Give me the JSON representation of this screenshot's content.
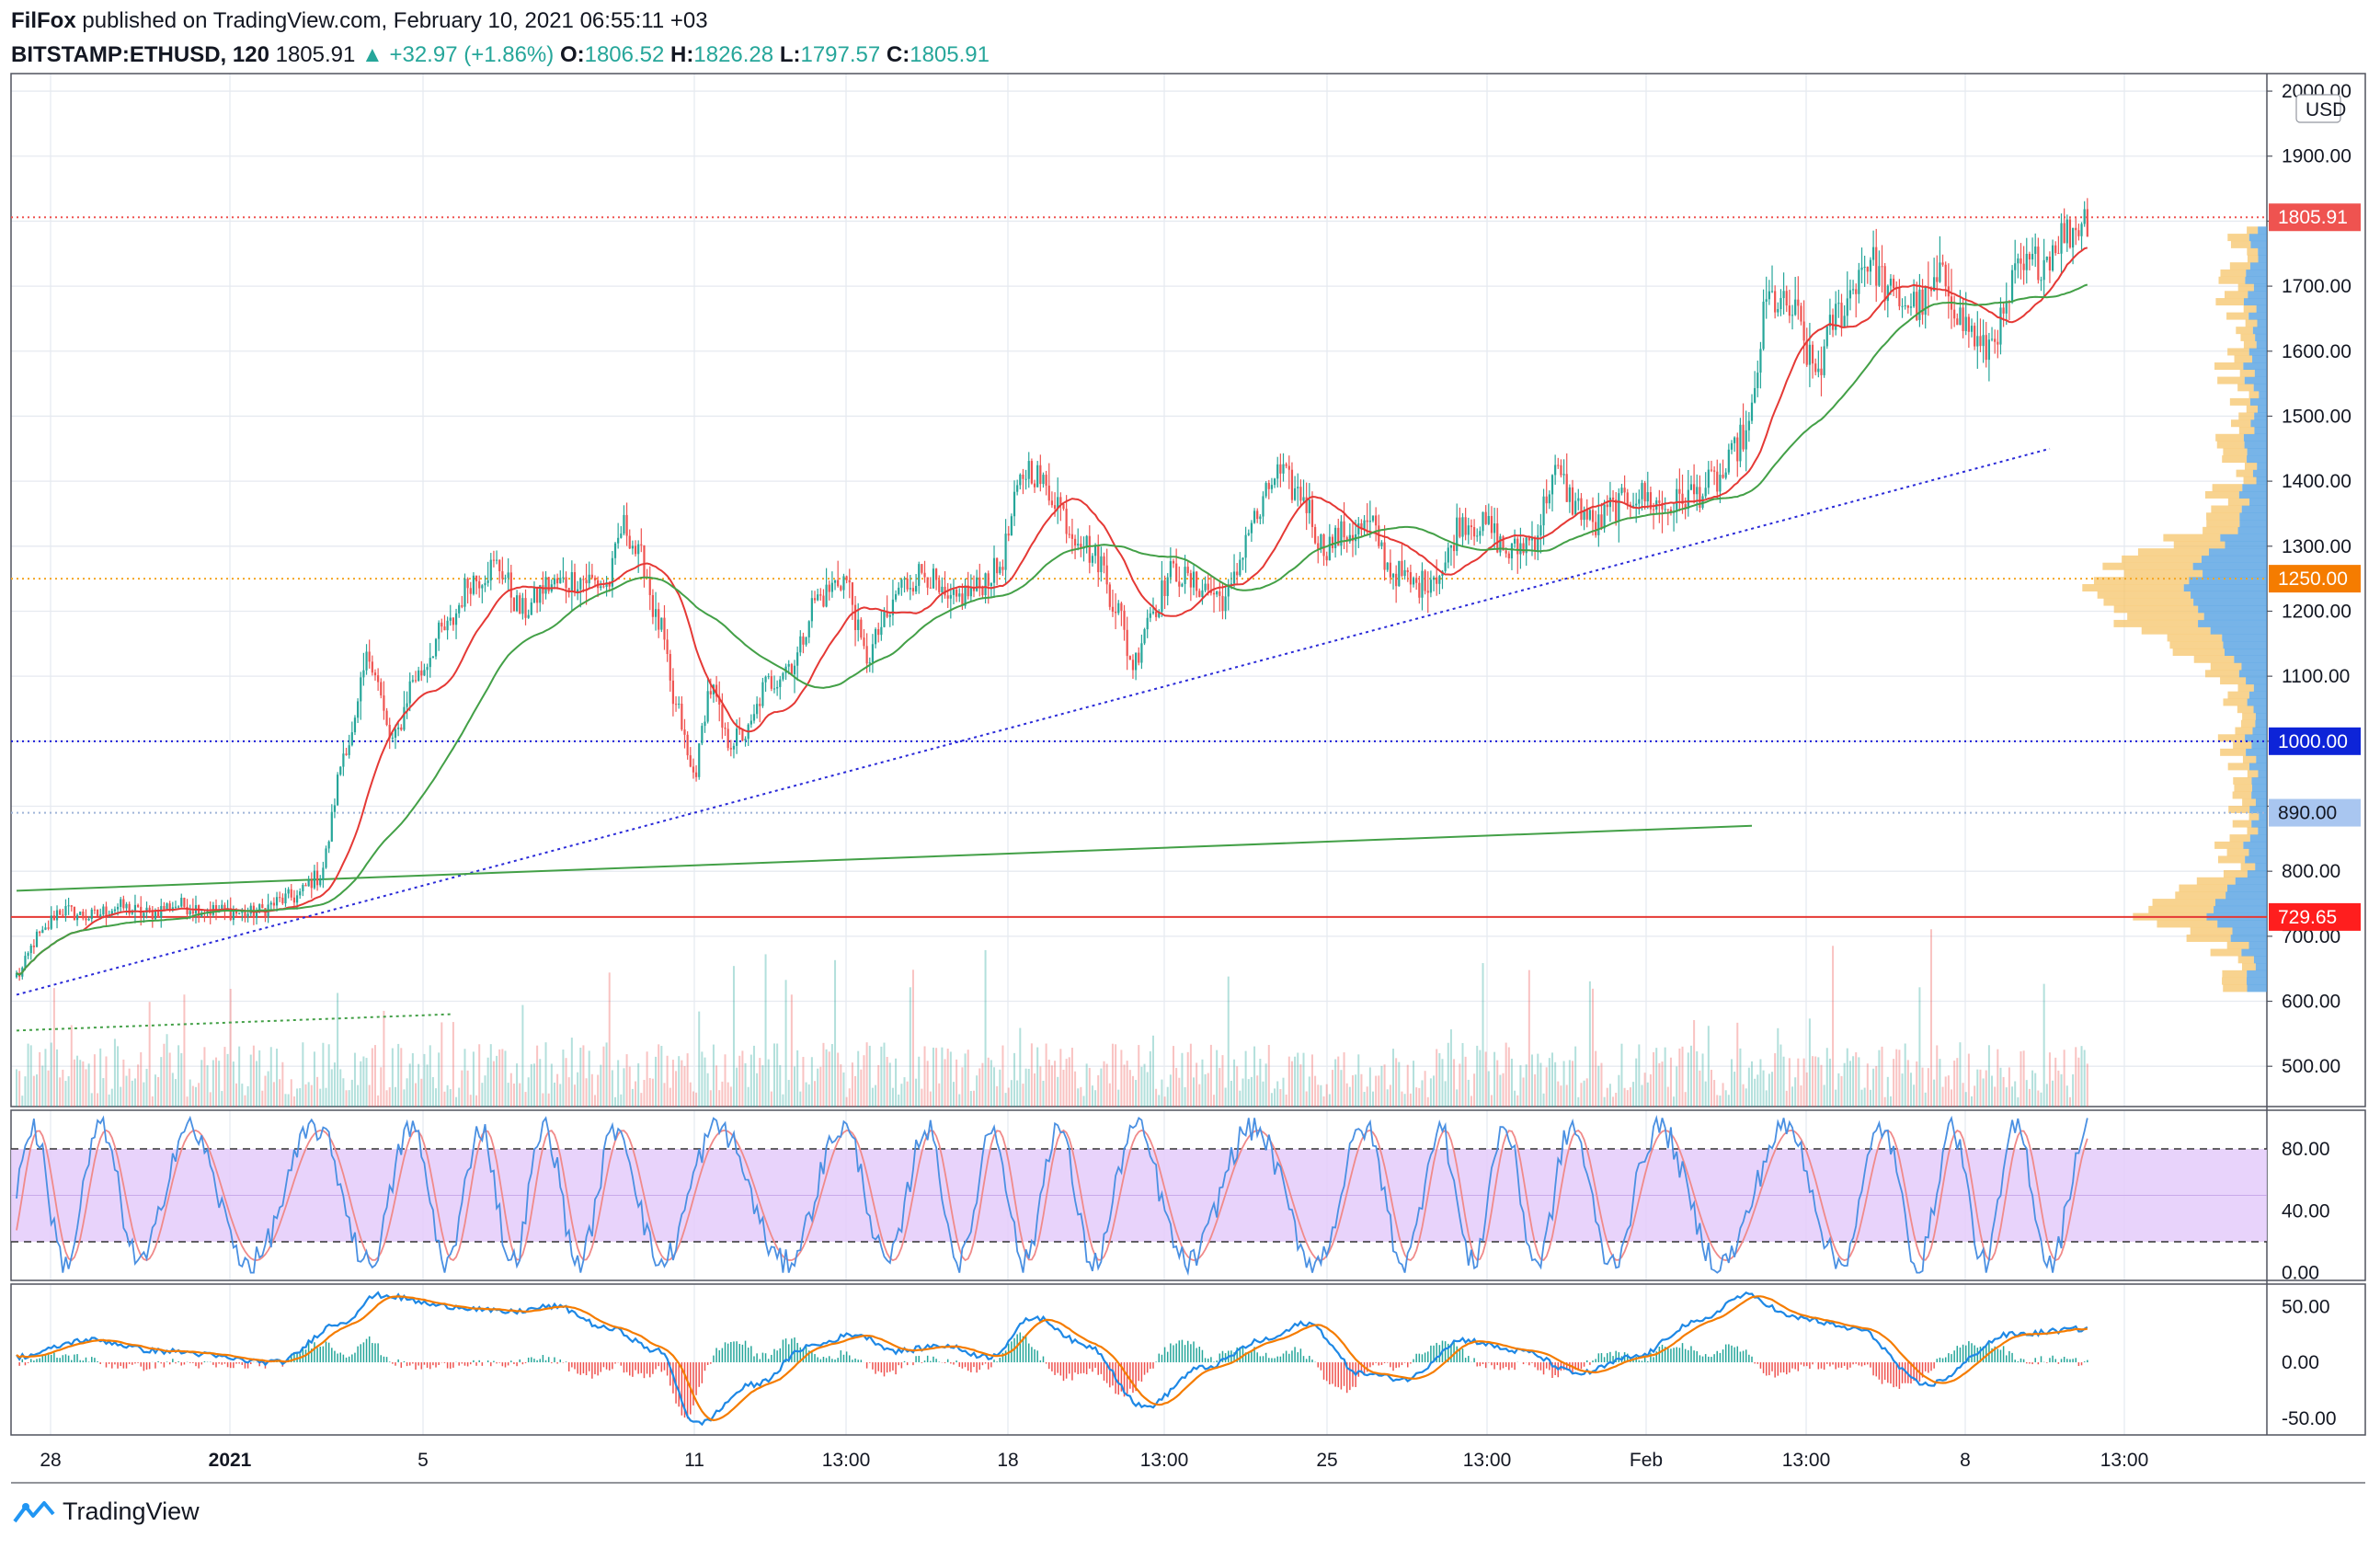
{
  "header": {
    "publisher_name": "FilFox",
    "published_text": "published on TradingView.com, February 10, 2021 06:55:11 +03",
    "symbol": "BITSTAMP:ETHUSD, 120",
    "last": "1805.91",
    "change": "+32.97 (+1.86%)",
    "open_label": "O:",
    "open": "1806.52",
    "high_label": "H:",
    "high": "1826.28",
    "low_label": "L:",
    "low": "1797.57",
    "close_label": "C:",
    "close": "1805.91"
  },
  "footer": {
    "brand": "TradingView"
  },
  "colors": {
    "up": "#26a69a",
    "down": "#ef5350",
    "grid": "#e6eaf0",
    "stoch_band": "#e4cbfa"
  },
  "chart_data": [
    {
      "type": "candlestick",
      "currency_label": "USD",
      "y_ticks": [
        "2000.00",
        "1900.00",
        "1800.00",
        "1700.00",
        "1600.00",
        "1500.00",
        "1400.00",
        "1300.00",
        "1200.00",
        "1100.00",
        "1000.00",
        "900.00",
        "800.00",
        "700.00",
        "600.00",
        "500.00"
      ],
      "ylim": [
        455,
        2010
      ],
      "x_ticks": [
        "28",
        "2021",
        "5",
        "11",
        "13:00",
        "18",
        "13:00",
        "25",
        "13:00",
        "Feb",
        "13:00",
        "8",
        "13:00"
      ],
      "price_anchors": [
        [
          0,
          640
        ],
        [
          8,
          700
        ],
        [
          15,
          740
        ],
        [
          25,
          730
        ],
        [
          35,
          745
        ],
        [
          45,
          735
        ],
        [
          55,
          748
        ],
        [
          68,
          740
        ],
        [
          80,
          735
        ],
        [
          96,
          760
        ],
        [
          104,
          790
        ],
        [
          115,
          1000
        ],
        [
          122,
          1130
        ],
        [
          130,
          1000
        ],
        [
          138,
          1100
        ],
        [
          148,
          1170
        ],
        [
          158,
          1250
        ],
        [
          166,
          1270
        ],
        [
          175,
          1200
        ],
        [
          184,
          1240
        ],
        [
          195,
          1250
        ],
        [
          204,
          1240
        ],
        [
          210,
          1330
        ],
        [
          216,
          1280
        ],
        [
          222,
          1180
        ],
        [
          228,
          1050
        ],
        [
          234,
          950
        ],
        [
          240,
          1080
        ],
        [
          246,
          1000
        ],
        [
          252,
          1010
        ],
        [
          260,
          1090
        ],
        [
          268,
          1120
        ],
        [
          277,
          1220
        ],
        [
          286,
          1250
        ],
        [
          294,
          1130
        ],
        [
          300,
          1180
        ],
        [
          306,
          1240
        ],
        [
          314,
          1260
        ],
        [
          322,
          1210
        ],
        [
          330,
          1230
        ],
        [
          338,
          1260
        ],
        [
          350,
          1420
        ],
        [
          358,
          1380
        ],
        [
          366,
          1320
        ],
        [
          374,
          1280
        ],
        [
          380,
          1210
        ],
        [
          386,
          1120
        ],
        [
          392,
          1200
        ],
        [
          400,
          1260
        ],
        [
          408,
          1240
        ],
        [
          418,
          1220
        ],
        [
          428,
          1340
        ],
        [
          436,
          1410
        ],
        [
          444,
          1380
        ],
        [
          452,
          1300
        ],
        [
          460,
          1320
        ],
        [
          468,
          1330
        ],
        [
          476,
          1260
        ],
        [
          484,
          1240
        ],
        [
          492,
          1260
        ],
        [
          500,
          1340
        ],
        [
          508,
          1330
        ],
        [
          516,
          1290
        ],
        [
          524,
          1310
        ],
        [
          532,
          1410
        ],
        [
          540,
          1360
        ],
        [
          546,
          1330
        ],
        [
          552,
          1360
        ],
        [
          560,
          1380
        ],
        [
          570,
          1360
        ],
        [
          580,
          1380
        ],
        [
          588,
          1400
        ],
        [
          598,
          1470
        ],
        [
          606,
          1680
        ],
        [
          614,
          1660
        ],
        [
          622,
          1570
        ],
        [
          630,
          1660
        ],
        [
          640,
          1740
        ],
        [
          650,
          1680
        ],
        [
          658,
          1670
        ],
        [
          666,
          1710
        ],
        [
          674,
          1640
        ],
        [
          680,
          1600
        ],
        [
          686,
          1640
        ],
        [
          692,
          1720
        ],
        [
          700,
          1740
        ],
        [
          708,
          1780
        ],
        [
          716,
          1806
        ]
      ],
      "tag_labels": [
        {
          "text": "1805.91",
          "price": 1805.91,
          "color": "#ef5350"
        },
        {
          "text": "1250.00",
          "price": 1250,
          "color": "#f57c00"
        },
        {
          "text": "1000.00",
          "price": 1000,
          "color": "#0d24d8"
        },
        {
          "text": "890.00",
          "price": 890,
          "color": "#a9c6f0",
          "text_color": "#131722"
        },
        {
          "text": "729.65",
          "price": 729.65,
          "color": "#ff1e1e"
        }
      ],
      "horizontal_levels": [
        {
          "price": 1805.91,
          "color": "#ef5350",
          "style": "dotted"
        },
        {
          "price": 1250,
          "color": "#f5a623",
          "style": "dotted"
        },
        {
          "price": 1000,
          "color": "#1a1ad8",
          "style": "dotted"
        },
        {
          "price": 890,
          "color": "#9fb4d8",
          "style": "dotted"
        },
        {
          "price": 729.65,
          "color": "#e53935",
          "style": "solid"
        }
      ],
      "trend_lines": [
        {
          "from": [
            0,
            610
          ],
          "to": [
            703,
            1450
          ],
          "color": "#2a2ad8",
          "style": "dotted"
        },
        {
          "from": [
            0,
            770
          ],
          "to": [
            600,
            870
          ],
          "color": "#43a047",
          "style": "solid"
        },
        {
          "from": [
            0,
            555
          ],
          "to": [
            150,
            580
          ],
          "color": "#43a047",
          "style": "dotted"
        }
      ],
      "moving_averages": [
        {
          "name": "short",
          "color": "#e53935",
          "period": 24
        },
        {
          "name": "long",
          "color": "#43a047",
          "period": 60
        }
      ]
    },
    {
      "type": "line",
      "name": "stochastic",
      "y_ticks": [
        "80.00",
        "40.00",
        "0.00"
      ],
      "ylim": [
        -5,
        105
      ],
      "band": [
        20,
        80
      ],
      "colors": [
        "#4a90e2",
        "#f08a8a"
      ]
    },
    {
      "type": "line",
      "name": "macd",
      "y_ticks": [
        "50.00",
        "0.00",
        "-50.00"
      ],
      "ylim": [
        -65,
        70
      ],
      "colors": [
        "#1e88e5",
        "#f57c00"
      ],
      "anchors": [
        [
          0,
          5
        ],
        [
          25,
          20
        ],
        [
          50,
          10
        ],
        [
          90,
          0
        ],
        [
          112,
          35
        ],
        [
          125,
          60
        ],
        [
          150,
          50
        ],
        [
          170,
          45
        ],
        [
          186,
          50
        ],
        [
          205,
          30
        ],
        [
          222,
          10
        ],
        [
          235,
          -55
        ],
        [
          255,
          -20
        ],
        [
          275,
          15
        ],
        [
          290,
          25
        ],
        [
          305,
          10
        ],
        [
          320,
          15
        ],
        [
          336,
          5
        ],
        [
          352,
          40
        ],
        [
          370,
          15
        ],
        [
          390,
          -40
        ],
        [
          410,
          -5
        ],
        [
          432,
          20
        ],
        [
          446,
          35
        ],
        [
          465,
          -10
        ],
        [
          480,
          -15
        ],
        [
          500,
          20
        ],
        [
          520,
          10
        ],
        [
          540,
          -10
        ],
        [
          560,
          5
        ],
        [
          580,
          35
        ],
        [
          598,
          60
        ],
        [
          615,
          40
        ],
        [
          636,
          30
        ],
        [
          660,
          -20
        ],
        [
          690,
          25
        ],
        [
          716,
          30
        ]
      ]
    }
  ]
}
